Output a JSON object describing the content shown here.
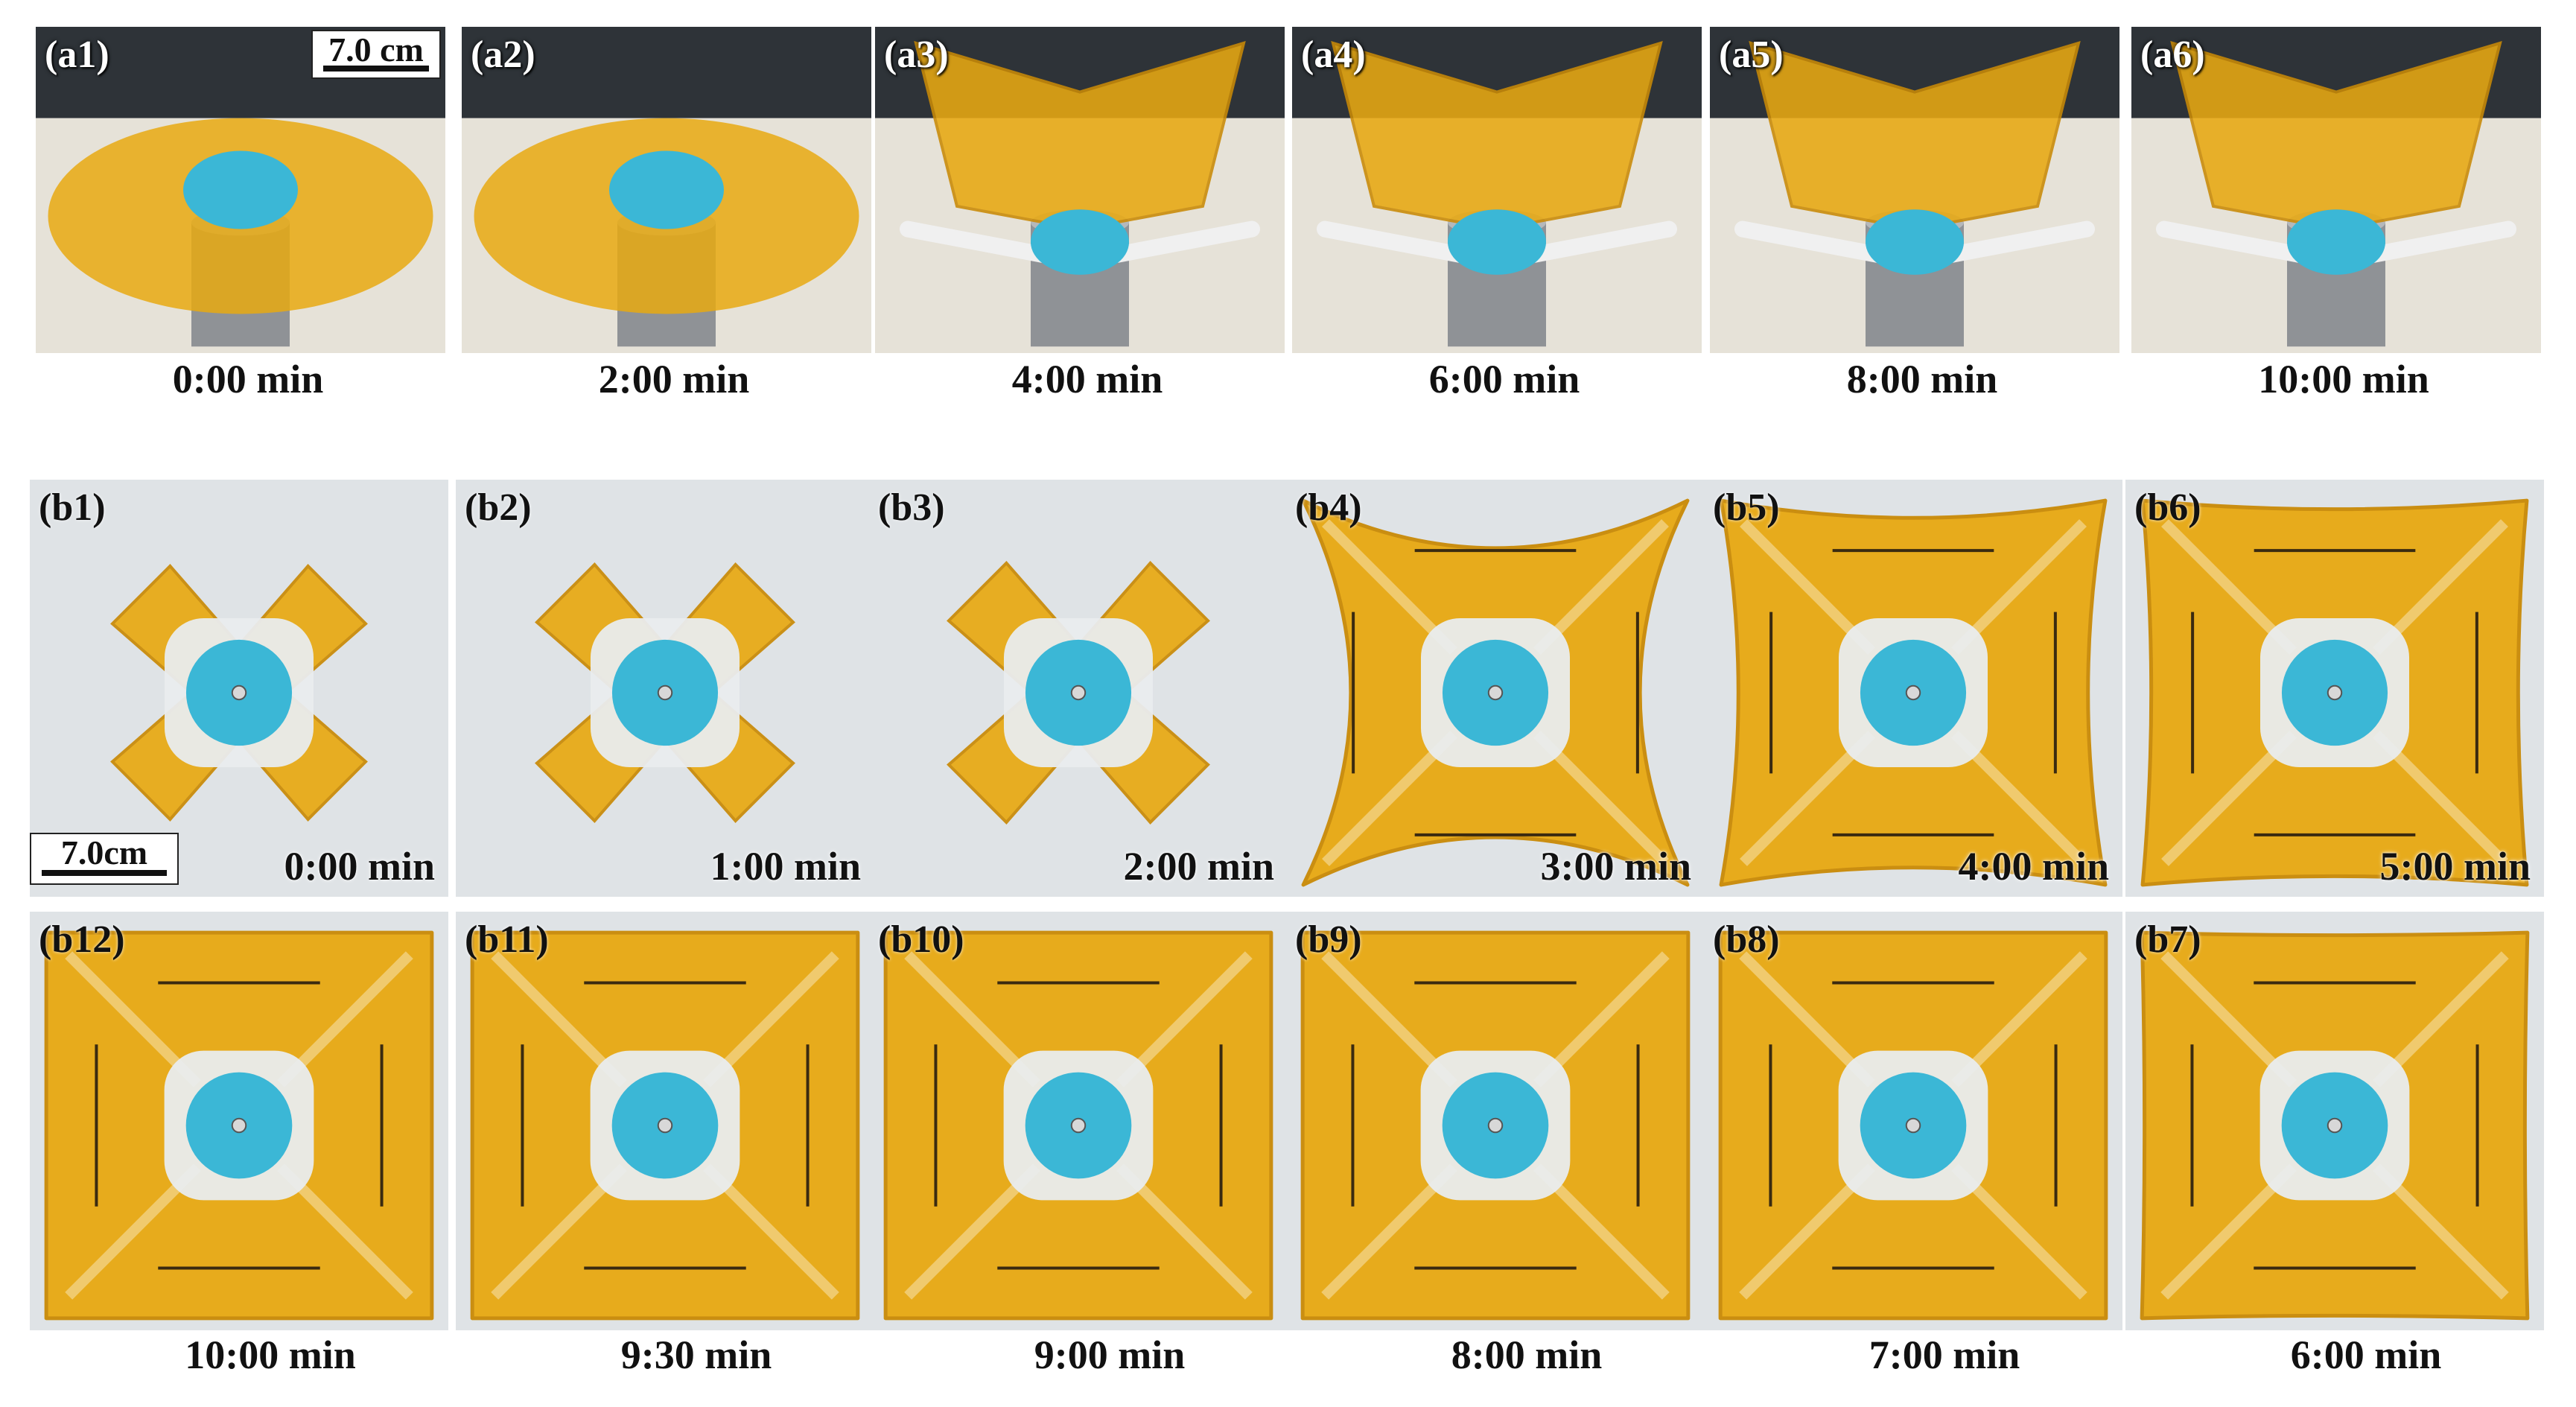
{
  "figure": {
    "row_a": {
      "panels": [
        {
          "label": "(a1)",
          "time": "0:00 min",
          "stage": 0.0
        },
        {
          "label": "(a2)",
          "time": "2:00 min",
          "stage": 0.2
        },
        {
          "label": "(a3)",
          "time": "4:00 min",
          "stage": 1.0
        },
        {
          "label": "(a4)",
          "time": "6:00 min",
          "stage": 1.0
        },
        {
          "label": "(a5)",
          "time": "8:00 min",
          "stage": 1.0
        },
        {
          "label": "(a6)",
          "time": "10:00 min",
          "stage": 1.0
        }
      ],
      "scale_label": "7.0 cm"
    },
    "row_b_top": {
      "panels": [
        {
          "label": "(b1)",
          "time": "0:00 min",
          "stage": 0.0
        },
        {
          "label": "(b2)",
          "time": "1:00 min",
          "stage": 0.05
        },
        {
          "label": "(b3)",
          "time": "2:00 min",
          "stage": 0.1
        },
        {
          "label": "(b4)",
          "time": "3:00 min",
          "stage": 0.45
        },
        {
          "label": "(b5)",
          "time": "4:00 min",
          "stage": 0.8
        },
        {
          "label": "(b6)",
          "time": "5:00 min",
          "stage": 0.9
        }
      ],
      "scale_label": "7.0cm"
    },
    "row_b_bottom": {
      "panels": [
        {
          "label": "(b12)",
          "time": "10:00 min",
          "stage": 1.0
        },
        {
          "label": "(b11)",
          "time": "9:30 min",
          "stage": 1.0
        },
        {
          "label": "(b10)",
          "time": "9:00 min",
          "stage": 1.0
        },
        {
          "label": "(b9)",
          "time": "8:00 min",
          "stage": 1.0
        },
        {
          "label": "(b8)",
          "time": "7:00 min",
          "stage": 1.0
        },
        {
          "label": "(b7)",
          "time": "6:00 min",
          "stage": 0.97
        }
      ]
    },
    "colors": {
      "film": "#e8a912",
      "film_dark": "#c98a06",
      "cup": "#3bb7d6",
      "background_a": "#e6e2d8",
      "background_b": "#dfe3e6",
      "metal": "#8f9296"
    }
  }
}
